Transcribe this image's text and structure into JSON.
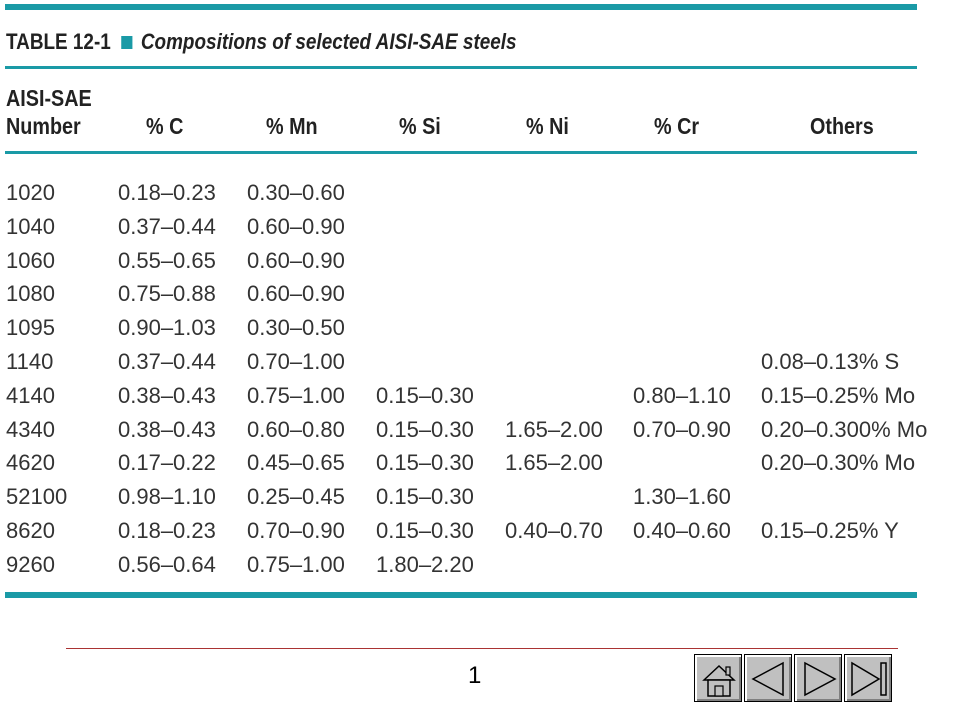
{
  "table": {
    "title_number": "TABLE 12-1",
    "title_text": "Compositions of selected AISI-SAE steels",
    "headers": [
      "AISI-SAE Number",
      "% C",
      "% Mn",
      "% Si",
      "% Ni",
      "% Cr",
      "Others"
    ],
    "header_first_line1": "AISI-SAE",
    "header_first_line2": "Number",
    "rows": [
      [
        "1020",
        "0.18–0.23",
        "0.30–0.60",
        "",
        "",
        "",
        ""
      ],
      [
        "1040",
        "0.37–0.44",
        "0.60–0.90",
        "",
        "",
        "",
        ""
      ],
      [
        "1060",
        "0.55–0.65",
        "0.60–0.90",
        "",
        "",
        "",
        ""
      ],
      [
        "1080",
        "0.75–0.88",
        "0.60–0.90",
        "",
        "",
        "",
        ""
      ],
      [
        "1095",
        "0.90–1.03",
        "0.30–0.50",
        "",
        "",
        "",
        ""
      ],
      [
        "1140",
        "0.37–0.44",
        "0.70–1.00",
        "",
        "",
        "",
        "0.08–0.13% S"
      ],
      [
        "4140",
        "0.38–0.43",
        "0.75–1.00",
        "0.15–0.30",
        "",
        "0.80–1.10",
        "0.15–0.25% Mo"
      ],
      [
        "4340",
        "0.38–0.43",
        "0.60–0.80",
        "0.15–0.30",
        "1.65–2.00",
        "0.70–0.90",
        "0.20–0.300% Mo"
      ],
      [
        "4620",
        "0.17–0.22",
        "0.45–0.65",
        "0.15–0.30",
        "1.65–2.00",
        "",
        "0.20–0.30% Mo"
      ],
      [
        "52100",
        "0.98–1.10",
        "0.25–0.45",
        "0.15–0.30",
        "",
        "1.30–1.60",
        ""
      ],
      [
        "8620",
        "0.18–0.23",
        "0.70–0.90",
        "0.15–0.30",
        "0.40–0.70",
        "0.40–0.60",
        "0.15–0.25% Y"
      ],
      [
        "9260",
        "0.56–0.64",
        "0.75–1.00",
        "1.80–2.20",
        "",
        "",
        ""
      ]
    ]
  },
  "footer": {
    "page_number": "1"
  },
  "nav": {
    "icons": [
      "home-icon",
      "previous-icon",
      "next-icon",
      "last-slide-icon"
    ],
    "accent_color": "#1a9aa6"
  }
}
